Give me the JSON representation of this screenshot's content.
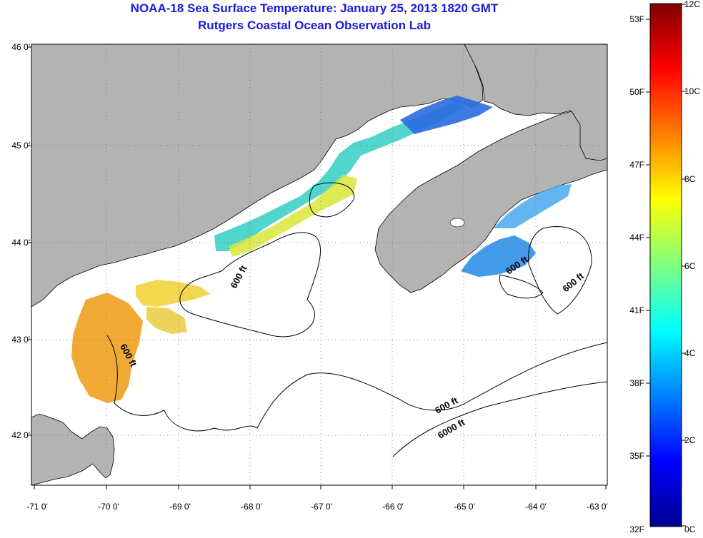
{
  "header": {
    "title": "NOAA-18 Sea Surface Temperature:  January 25, 2013 1820 GMT",
    "subtitle": "Rutgers Coastal Ocean Observation Lab"
  },
  "map": {
    "lon_range": [
      -71,
      -63
    ],
    "lat_range": [
      41.5,
      46
    ],
    "lon_ticks": [
      "-71 0'",
      "-70 0'",
      "-69 0'",
      "-68 0'",
      "-67 0'",
      "-66 0'",
      "-65 0'",
      "-64 0'",
      "-63 0'"
    ],
    "lat_ticks": [
      "46 0'",
      "45 0'",
      "44 0'",
      "43 0'",
      "42 0'"
    ],
    "contour_labels": [
      "600 ft",
      "600 ft",
      "600 ft",
      "600 ft",
      "600 ft",
      "6000 ft"
    ],
    "colors": {
      "land": "#b3b3b3",
      "ocean": "#ffffff",
      "coast": "#000000"
    }
  },
  "colorbar": {
    "fahrenheit_labels": [
      "53F",
      "50F",
      "47F",
      "44F",
      "41F",
      "38F",
      "35F",
      "32F"
    ],
    "celsius_labels": [
      "12C",
      "10C",
      "8C",
      "6C",
      "4C",
      "2C",
      "0C"
    ],
    "range_c": [
      0,
      12
    ],
    "colormap": "jet"
  }
}
